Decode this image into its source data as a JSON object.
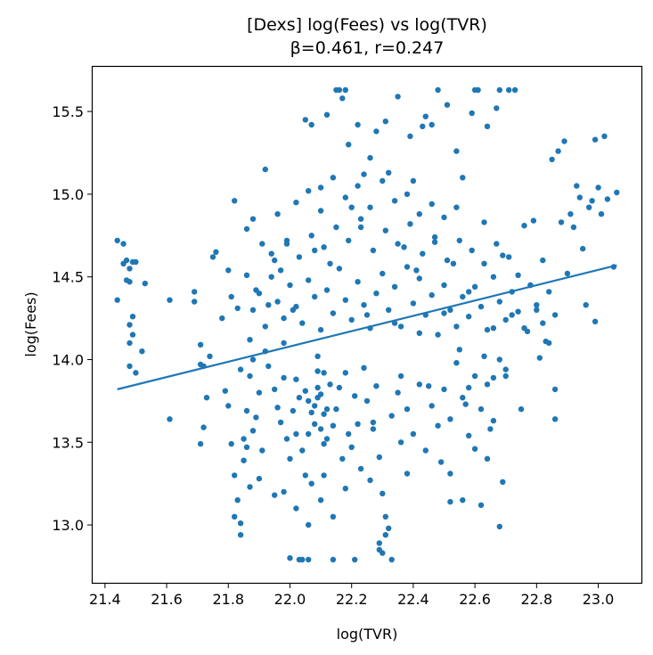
{
  "chart_data": {
    "type": "scatter",
    "title": "[Dexs] log(Fees) vs log(TVR)",
    "subtitle": "β=0.461, r=0.247",
    "xlabel": "log(TVR)",
    "ylabel": "log(Fees)",
    "xlim": [
      21.36,
      23.14
    ],
    "ylim": [
      12.65,
      15.77
    ],
    "x_ticks": [
      "21.4",
      "21.6",
      "21.8",
      "22.0",
      "22.2",
      "22.4",
      "22.6",
      "22.8",
      "23.0"
    ],
    "y_ticks": [
      "13.0",
      "13.5",
      "14.0",
      "14.5",
      "15.0",
      "15.5"
    ],
    "grid": false,
    "point_color": "#1f77b4",
    "line_color": "#1f77b4",
    "fit_line": {
      "x": [
        21.44,
        23.06
      ],
      "y": [
        13.82,
        14.57
      ]
    },
    "points": [
      [
        21.44,
        14.72
      ],
      [
        21.46,
        14.7
      ],
      [
        21.46,
        14.58
      ],
      [
        21.47,
        14.6
      ],
      [
        21.48,
        14.55
      ],
      [
        21.47,
        14.48
      ],
      [
        21.48,
        14.47
      ],
      [
        21.49,
        14.59
      ],
      [
        21.5,
        14.59
      ],
      [
        21.44,
        14.36
      ],
      [
        21.48,
        14.21
      ],
      [
        21.49,
        14.26
      ],
      [
        21.49,
        14.15
      ],
      [
        21.48,
        14.1
      ],
      [
        21.48,
        13.96
      ],
      [
        21.5,
        13.92
      ],
      [
        21.52,
        14.05
      ],
      [
        21.53,
        14.46
      ],
      [
        21.61,
        14.36
      ],
      [
        21.61,
        13.64
      ],
      [
        21.69,
        14.41
      ],
      [
        21.69,
        14.35
      ],
      [
        21.71,
        14.09
      ],
      [
        21.71,
        13.97
      ],
      [
        21.72,
        13.96
      ],
      [
        21.72,
        13.59
      ],
      [
        21.71,
        13.49
      ],
      [
        21.73,
        13.77
      ],
      [
        21.74,
        14.02
      ],
      [
        21.75,
        14.62
      ],
      [
        21.76,
        14.65
      ],
      [
        21.78,
        14.25
      ],
      [
        21.79,
        13.81
      ],
      [
        21.8,
        14.54
      ],
      [
        21.81,
        14.38
      ],
      [
        21.82,
        14.96
      ],
      [
        21.83,
        14.31
      ],
      [
        21.84,
        13.94
      ],
      [
        21.86,
        14.79
      ],
      [
        21.86,
        14.51
      ],
      [
        21.87,
        14.12
      ],
      [
        21.88,
        14.85
      ],
      [
        21.89,
        14.42
      ],
      [
        21.9,
        13.28
      ],
      [
        21.91,
        14.7
      ],
      [
        21.92,
        15.15
      ],
      [
        21.93,
        14.33
      ],
      [
        21.94,
        14.64
      ],
      [
        21.95,
        13.18
      ],
      [
        21.96,
        14.88
      ],
      [
        21.97,
        14.54
      ],
      [
        21.98,
        14.1
      ],
      [
        21.99,
        14.72
      ],
      [
        22.0,
        12.8
      ],
      [
        22.01,
        14.3
      ],
      [
        22.02,
        13.55
      ],
      [
        22.03,
        12.79
      ],
      [
        22.04,
        12.79
      ],
      [
        22.05,
        15.45
      ],
      [
        22.06,
        12.79
      ],
      [
        22.07,
        15.42
      ],
      [
        22.08,
        14.66
      ],
      [
        22.09,
        14.02
      ],
      [
        22.1,
        15.04
      ],
      [
        22.11,
        13.3
      ],
      [
        22.12,
        15.48
      ],
      [
        22.13,
        14.58
      ],
      [
        22.14,
        12.79
      ],
      [
        22.15,
        15.63
      ],
      [
        22.16,
        15.63
      ],
      [
        22.17,
        15.58
      ],
      [
        22.18,
        15.63
      ],
      [
        22.19,
        15.3
      ],
      [
        22.2,
        14.92
      ],
      [
        22.21,
        12.79
      ],
      [
        22.22,
        15.42
      ],
      [
        22.23,
        14.8
      ],
      [
        22.24,
        15.12
      ],
      [
        22.25,
        14.27
      ],
      [
        22.26,
        15.22
      ],
      [
        22.27,
        13.62
      ],
      [
        22.28,
        15.38
      ],
      [
        22.29,
        12.85
      ],
      [
        22.3,
        12.83
      ],
      [
        22.31,
        15.44
      ],
      [
        22.32,
        15.13
      ],
      [
        22.33,
        12.79
      ],
      [
        22.34,
        14.22
      ],
      [
        22.35,
        15.59
      ],
      [
        22.36,
        13.5
      ],
      [
        22.37,
        14.68
      ],
      [
        22.38,
        13.31
      ],
      [
        22.39,
        15.35
      ],
      [
        22.4,
        15.08
      ],
      [
        22.41,
        14.54
      ],
      [
        22.42,
        14.16
      ],
      [
        22.43,
        15.41
      ],
      [
        22.44,
        15.47
      ],
      [
        22.45,
        13.84
      ],
      [
        22.46,
        15.42
      ],
      [
        22.47,
        14.71
      ],
      [
        22.48,
        15.63
      ],
      [
        22.49,
        13.38
      ],
      [
        22.5,
        14.28
      ],
      [
        22.51,
        15.54
      ],
      [
        22.52,
        13.14
      ],
      [
        22.53,
        14.58
      ],
      [
        22.54,
        15.26
      ],
      [
        22.55,
        14.06
      ],
      [
        22.56,
        15.1
      ],
      [
        22.57,
        13.73
      ],
      [
        22.58,
        14.41
      ],
      [
        22.59,
        15.49
      ],
      [
        22.6,
        15.63
      ],
      [
        22.61,
        15.63
      ],
      [
        22.62,
        13.12
      ],
      [
        22.63,
        14.83
      ],
      [
        22.64,
        15.41
      ],
      [
        22.65,
        13.58
      ],
      [
        22.66,
        14.19
      ],
      [
        22.67,
        15.52
      ],
      [
        22.68,
        15.63
      ],
      [
        22.69,
        14.63
      ],
      [
        22.7,
        13.94
      ],
      [
        22.71,
        15.63
      ],
      [
        22.72,
        14.27
      ],
      [
        22.73,
        15.63
      ],
      [
        22.74,
        14.51
      ],
      [
        22.75,
        13.7
      ],
      [
        22.76,
        14.81
      ],
      [
        22.77,
        14.17
      ],
      [
        22.78,
        14.45
      ],
      [
        22.79,
        14.84
      ],
      [
        22.8,
        14.3
      ],
      [
        22.81,
        14.01
      ],
      [
        22.82,
        14.6
      ],
      [
        22.83,
        14.11
      ],
      [
        22.84,
        14.41
      ],
      [
        22.85,
        15.21
      ],
      [
        22.86,
        13.82
      ],
      [
        22.86,
        13.64
      ],
      [
        22.87,
        15.26
      ],
      [
        22.88,
        14.83
      ],
      [
        22.89,
        15.32
      ],
      [
        22.9,
        14.52
      ],
      [
        22.91,
        14.88
      ],
      [
        22.92,
        14.8
      ],
      [
        22.93,
        15.05
      ],
      [
        22.94,
        14.98
      ],
      [
        22.95,
        14.67
      ],
      [
        22.96,
        14.33
      ],
      [
        22.97,
        14.92
      ],
      [
        22.98,
        14.96
      ],
      [
        22.99,
        15.33
      ],
      [
        22.99,
        14.23
      ],
      [
        23.0,
        15.04
      ],
      [
        23.01,
        14.88
      ],
      [
        23.02,
        15.35
      ],
      [
        23.03,
        14.97
      ],
      [
        23.05,
        14.56
      ],
      [
        23.06,
        15.01
      ],
      [
        22.68,
        12.99
      ],
      [
        22.56,
        13.15
      ],
      [
        22.52,
        13.31
      ],
      [
        22.6,
        13.46
      ],
      [
        22.64,
        13.4
      ],
      [
        22.69,
        13.26
      ],
      [
        22.58,
        13.83
      ],
      [
        22.63,
        14.02
      ],
      [
        22.66,
        13.89
      ],
      [
        21.8,
        13.72
      ],
      [
        21.81,
        13.49
      ],
      [
        21.82,
        13.3
      ],
      [
        21.83,
        13.15
      ],
      [
        21.84,
        13.01
      ],
      [
        21.84,
        12.94
      ],
      [
        21.85,
        13.52
      ],
      [
        21.86,
        13.69
      ],
      [
        21.87,
        13.23
      ],
      [
        21.88,
        13.57
      ],
      [
        21.82,
        13.05
      ],
      [
        21.85,
        13.39
      ],
      [
        21.86,
        13.47
      ],
      [
        21.87,
        13.9
      ],
      [
        21.88,
        14.0
      ],
      [
        21.89,
        13.65
      ],
      [
        21.9,
        13.8
      ],
      [
        21.91,
        13.45
      ],
      [
        21.92,
        14.05
      ],
      [
        21.93,
        13.96
      ],
      [
        21.95,
        13.82
      ],
      [
        21.96,
        13.71
      ],
      [
        21.97,
        13.62
      ],
      [
        21.98,
        13.89
      ],
      [
        21.99,
        13.52
      ],
      [
        22.0,
        13.4
      ],
      [
        22.01,
        13.69
      ],
      [
        22.02,
        13.88
      ],
      [
        22.03,
        13.77
      ],
      [
        22.04,
        13.45
      ],
      [
        22.05,
        13.3
      ],
      [
        22.06,
        13.55
      ],
      [
        22.07,
        13.25
      ],
      [
        22.08,
        13.72
      ],
      [
        22.09,
        13.93
      ],
      [
        22.1,
        13.79
      ],
      [
        22.11,
        13.67
      ],
      [
        22.12,
        13.52
      ],
      [
        22.13,
        13.85
      ],
      [
        22.14,
        13.6
      ],
      [
        22.06,
        13.75
      ],
      [
        22.07,
        13.68
      ],
      [
        22.08,
        13.61
      ],
      [
        22.09,
        13.83
      ],
      [
        22.1,
        13.58
      ],
      [
        22.11,
        13.49
      ],
      [
        22.12,
        13.7
      ],
      [
        22.05,
        13.81
      ],
      [
        22.09,
        13.77
      ],
      [
        22.11,
        13.92
      ],
      [
        22.15,
        13.7
      ],
      [
        22.16,
        13.83
      ],
      [
        22.17,
        13.4
      ],
      [
        22.18,
        13.92
      ],
      [
        22.19,
        13.55
      ],
      [
        22.2,
        13.47
      ],
      [
        22.21,
        13.78
      ],
      [
        22.22,
        13.61
      ],
      [
        22.23,
        13.34
      ],
      [
        22.24,
        13.95
      ],
      [
        22.25,
        13.75
      ],
      [
        22.26,
        13.27
      ],
      [
        22.27,
        13.58
      ],
      [
        22.28,
        13.84
      ],
      [
        22.29,
        13.41
      ],
      [
        22.3,
        13.19
      ],
      [
        22.31,
        13.05
      ],
      [
        22.32,
        12.98
      ],
      [
        22.29,
        12.89
      ],
      [
        22.31,
        12.94
      ],
      [
        22.33,
        13.66
      ],
      [
        22.35,
        13.8
      ],
      [
        22.36,
        13.9
      ],
      [
        22.38,
        13.7
      ],
      [
        22.4,
        13.55
      ],
      [
        22.42,
        13.85
      ],
      [
        22.44,
        13.45
      ],
      [
        22.46,
        13.72
      ],
      [
        22.48,
        13.6
      ],
      [
        22.5,
        13.82
      ],
      [
        22.52,
        13.64
      ],
      [
        22.54,
        13.98
      ],
      [
        22.56,
        13.77
      ],
      [
        22.58,
        13.54
      ],
      [
        22.6,
        13.9
      ],
      [
        22.62,
        13.7
      ],
      [
        22.64,
        13.85
      ],
      [
        22.66,
        13.63
      ],
      [
        22.68,
        14.0
      ],
      [
        22.7,
        13.9
      ],
      [
        21.88,
        14.3
      ],
      [
        21.9,
        14.4
      ],
      [
        21.92,
        14.2
      ],
      [
        21.94,
        14.5
      ],
      [
        21.96,
        14.35
      ],
      [
        21.98,
        14.25
      ],
      [
        22.0,
        14.45
      ],
      [
        22.02,
        14.32
      ],
      [
        22.04,
        14.22
      ],
      [
        22.06,
        14.48
      ],
      [
        22.08,
        14.38
      ],
      [
        22.1,
        14.18
      ],
      [
        22.12,
        14.42
      ],
      [
        22.14,
        14.28
      ],
      [
        22.16,
        14.55
      ],
      [
        22.18,
        14.36
      ],
      [
        22.2,
        14.24
      ],
      [
        22.22,
        14.47
      ],
      [
        22.24,
        14.33
      ],
      [
        22.26,
        14.19
      ],
      [
        22.28,
        14.4
      ],
      [
        22.3,
        14.52
      ],
      [
        22.32,
        14.3
      ],
      [
        22.34,
        14.44
      ],
      [
        22.36,
        14.2
      ],
      [
        22.38,
        14.56
      ],
      [
        22.4,
        14.34
      ],
      [
        22.42,
        14.49
      ],
      [
        22.44,
        14.27
      ],
      [
        22.46,
        14.39
      ],
      [
        22.48,
        14.15
      ],
      [
        22.5,
        14.45
      ],
      [
        22.52,
        14.3
      ],
      [
        22.54,
        14.2
      ],
      [
        22.56,
        14.38
      ],
      [
        22.58,
        14.26
      ],
      [
        22.6,
        14.44
      ],
      [
        22.62,
        14.32
      ],
      [
        22.64,
        14.18
      ],
      [
        22.66,
        14.5
      ],
      [
        22.68,
        14.35
      ],
      [
        22.7,
        14.24
      ],
      [
        22.72,
        14.41
      ],
      [
        22.74,
        14.29
      ],
      [
        22.76,
        14.19
      ],
      [
        22.78,
        14.45
      ],
      [
        22.8,
        14.33
      ],
      [
        22.82,
        14.22
      ],
      [
        22.84,
        14.1
      ],
      [
        22.86,
        14.27
      ],
      [
        21.95,
        14.6
      ],
      [
        21.99,
        14.7
      ],
      [
        22.03,
        14.62
      ],
      [
        22.07,
        14.75
      ],
      [
        22.11,
        14.68
      ],
      [
        22.15,
        14.8
      ],
      [
        22.19,
        14.72
      ],
      [
        22.23,
        14.85
      ],
      [
        22.27,
        14.66
      ],
      [
        22.31,
        14.78
      ],
      [
        22.35,
        14.7
      ],
      [
        22.39,
        14.82
      ],
      [
        22.43,
        14.64
      ],
      [
        22.47,
        14.74
      ],
      [
        22.51,
        14.6
      ],
      [
        22.55,
        14.72
      ],
      [
        22.59,
        14.66
      ],
      [
        22.63,
        14.58
      ],
      [
        22.67,
        14.7
      ],
      [
        22.71,
        14.62
      ],
      [
        22.02,
        14.95
      ],
      [
        22.06,
        15.02
      ],
      [
        22.1,
        14.9
      ],
      [
        22.14,
        15.1
      ],
      [
        22.18,
        14.98
      ],
      [
        22.22,
        15.05
      ],
      [
        22.26,
        14.92
      ],
      [
        22.3,
        15.08
      ],
      [
        22.34,
        14.96
      ],
      [
        22.38,
        15.0
      ],
      [
        22.42,
        14.88
      ],
      [
        22.46,
        14.94
      ],
      [
        22.5,
        14.86
      ],
      [
        22.54,
        14.92
      ],
      [
        21.98,
        13.2
      ],
      [
        22.02,
        13.1
      ],
      [
        22.06,
        13.0
      ],
      [
        22.1,
        13.15
      ],
      [
        22.14,
        13.05
      ],
      [
        22.18,
        13.22
      ]
    ]
  }
}
